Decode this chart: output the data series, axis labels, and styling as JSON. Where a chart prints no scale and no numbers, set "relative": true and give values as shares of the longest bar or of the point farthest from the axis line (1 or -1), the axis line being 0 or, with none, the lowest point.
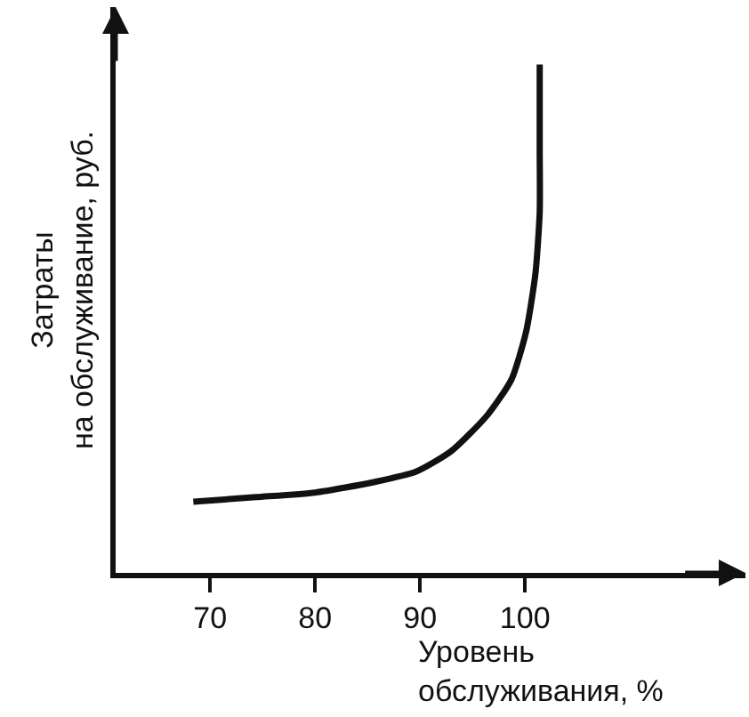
{
  "chart_data": {
    "type": "line",
    "relative": true,
    "xlabel": "Уровень\nобслуживания, %",
    "ylabel": "Затраты\nна обслуживание, руб.",
    "xlim": [
      61,
      121
    ],
    "xticks": [
      70,
      80,
      90,
      100
    ],
    "series": [
      {
        "color": "#111111",
        "x": [
          68.4,
          74.4,
          80.0,
          85.7,
          89.6,
          93.0,
          96.4,
          98.7,
          100.1,
          101.0,
          101.4,
          101.4,
          101.4
        ],
        "values": [
          0.14,
          0.149,
          0.158,
          0.179,
          0.199,
          0.24,
          0.31,
          0.38,
          0.474,
          0.59,
          0.71,
          0.83,
          1.0
        ]
      }
    ]
  }
}
